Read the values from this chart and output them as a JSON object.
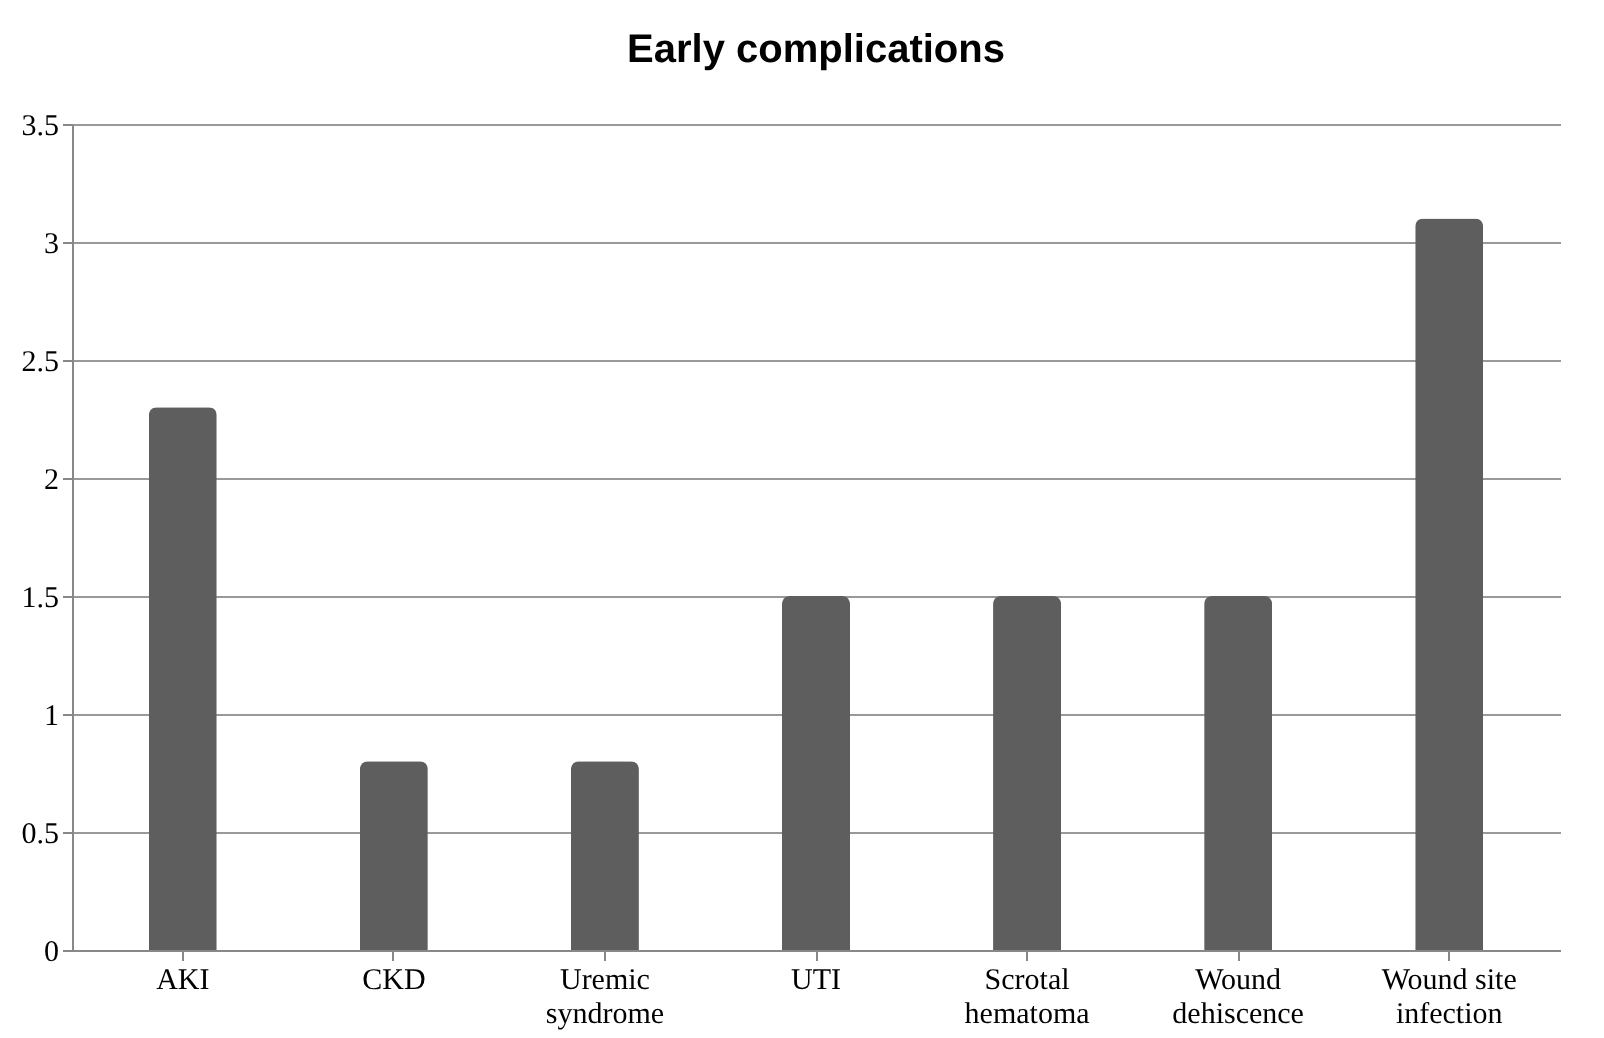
{
  "chart_data": {
    "type": "bar",
    "title": "Early complications",
    "categories": [
      "AKI",
      "CKD",
      "Uremic syndrome",
      "UTI",
      "Scrotal hematoma",
      "Wound dehiscence",
      "Wound site infection"
    ],
    "values": [
      2.3,
      0.8,
      0.8,
      1.5,
      1.5,
      1.5,
      3.1
    ],
    "color": "#5e5e5e",
    "ylim": [
      0,
      3.5
    ],
    "yticks": [
      0,
      0.5,
      1,
      1.5,
      2,
      2.5,
      3,
      3.5
    ],
    "grid": "y"
  }
}
